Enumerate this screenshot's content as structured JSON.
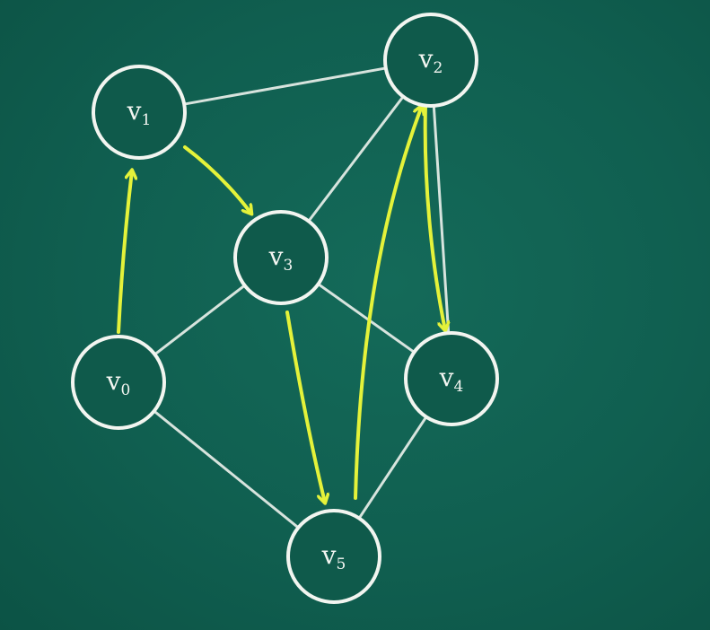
{
  "diagram": {
    "type": "graph-traversal",
    "colors": {
      "board": "#0f5a4b",
      "chalk": "#f2f5f0",
      "traversal": "#e4f23a"
    },
    "nodes": [
      {
        "id": "v0",
        "base": "v",
        "sub": "0"
      },
      {
        "id": "v1",
        "base": "v",
        "sub": "1"
      },
      {
        "id": "v2",
        "base": "v",
        "sub": "2"
      },
      {
        "id": "v3",
        "base": "v",
        "sub": "3"
      },
      {
        "id": "v4",
        "base": "v",
        "sub": "4"
      },
      {
        "id": "v5",
        "base": "v",
        "sub": "5"
      }
    ],
    "edges": [
      {
        "from": "v1",
        "to": "v2"
      },
      {
        "from": "v2",
        "to": "v3"
      },
      {
        "from": "v2",
        "to": "v4"
      },
      {
        "from": "v0",
        "to": "v3"
      },
      {
        "from": "v3",
        "to": "v4"
      },
      {
        "from": "v0",
        "to": "v5"
      },
      {
        "from": "v4",
        "to": "v5"
      }
    ],
    "traversal": [
      {
        "from": "v0",
        "to": "v1"
      },
      {
        "from": "v1",
        "to": "v3"
      },
      {
        "from": "v3",
        "to": "v5"
      },
      {
        "from": "v5",
        "to": "v2"
      },
      {
        "from": "v2",
        "to": "v4"
      }
    ]
  }
}
